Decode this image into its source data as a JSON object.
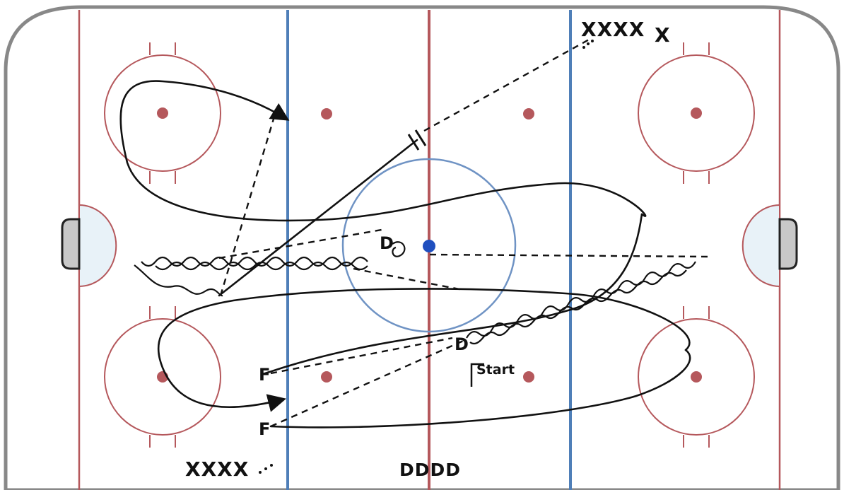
{
  "labels": {
    "forward_top": "F",
    "forward_bottom": "F",
    "defense_center": "D",
    "defense_lower": "D",
    "start": "Start",
    "x_group_top": "XXXX",
    "x_top_single": "X",
    "x_group_bottom": "XXXX",
    "d_group_bottom": "DDDD"
  },
  "colors": {
    "rink_line": "#b5585c",
    "blue_line": "#4f7fb8",
    "faceoff_dot": "#b5585c",
    "center_dot": "#1f4fbf",
    "center_circle": "#6f93c4",
    "goal_crease": "#e8f2f8",
    "goal_net": "#c8c8c8",
    "drill_path": "#111111",
    "board": "#888888"
  },
  "legend": {
    "solid_line": "skate",
    "dashed_line": "pass",
    "wavy_line": "skate with puck",
    "double_bar": "shot"
  }
}
